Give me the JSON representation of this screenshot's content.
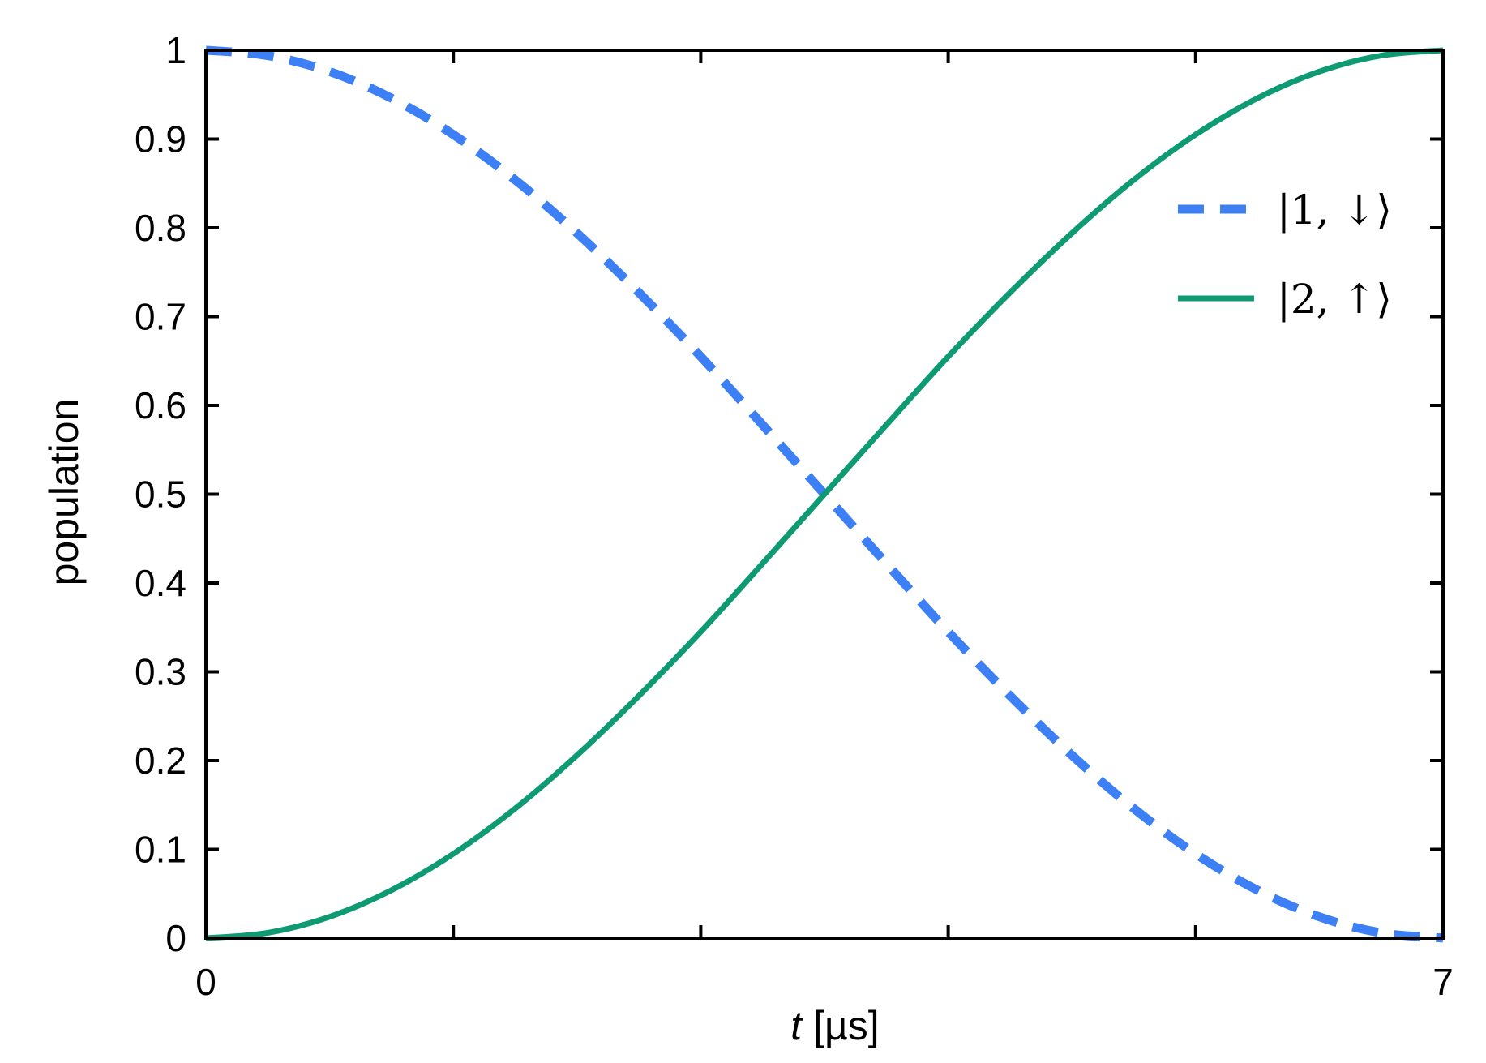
{
  "chart_data": {
    "type": "line",
    "title": "",
    "xlabel_var": "t",
    "xlabel_unit": " [µs]",
    "ylabel": "population",
    "xlim": [
      0,
      7
    ],
    "ylim": [
      0,
      1
    ],
    "x_tick_values": [
      0,
      1.4,
      2.8,
      4.2,
      5.6,
      7
    ],
    "x_tick_labels": [
      "0",
      "",
      "",
      "",
      "",
      "7"
    ],
    "y_tick_values": [
      0,
      0.1,
      0.2,
      0.3,
      0.4,
      0.5,
      0.6,
      0.7,
      0.8,
      0.9,
      1
    ],
    "y_tick_labels": [
      "0",
      "0.1",
      "0.2",
      "0.3",
      "0.4",
      "0.5",
      "0.6",
      "0.7",
      "0.8",
      "0.9",
      "1"
    ],
    "grid": false,
    "legend_position": "top-right",
    "x": [
      0,
      0.35,
      0.7,
      1.05,
      1.4,
      1.75,
      2.1,
      2.45,
      2.8,
      3.15,
      3.5,
      3.85,
      4.2,
      4.55,
      4.9,
      5.25,
      5.6,
      5.95,
      6.3,
      6.65,
      7
    ],
    "series": [
      {
        "name": "|1, ↓⟩",
        "color": "#3d7ff5",
        "style": "dashed",
        "values": [
          1.0,
          0.994,
          0.976,
          0.946,
          0.905,
          0.854,
          0.794,
          0.727,
          0.655,
          0.578,
          0.5,
          0.422,
          0.345,
          0.273,
          0.206,
          0.146,
          0.095,
          0.054,
          0.024,
          0.006,
          0.0
        ]
      },
      {
        "name": "|2, ↑⟩",
        "color": "#0e9a72",
        "style": "solid",
        "values": [
          0.0,
          0.006,
          0.024,
          0.054,
          0.095,
          0.146,
          0.206,
          0.273,
          0.345,
          0.422,
          0.5,
          0.578,
          0.655,
          0.727,
          0.794,
          0.854,
          0.905,
          0.946,
          0.976,
          0.994,
          1.0
        ]
      }
    ]
  }
}
